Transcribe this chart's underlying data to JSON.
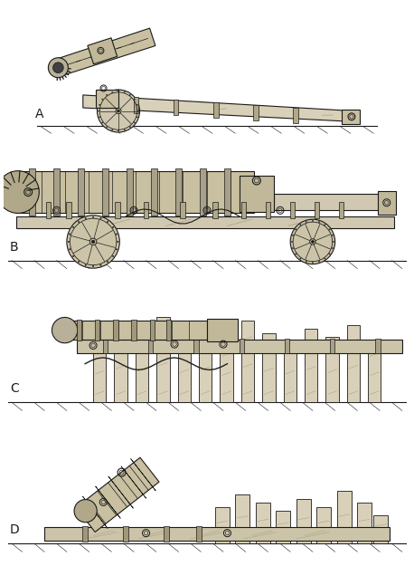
{
  "background_color": "#ffffff",
  "line_color": "#1a1a1a",
  "fill_light": "#e8e0d0",
  "fill_medium": "#d0c8b0",
  "fill_dark": "#b0a890",
  "fill_wheel": "#c8c0a8",
  "label_A": "A",
  "label_B": "B",
  "label_C": "C",
  "label_D": "D",
  "label_fontsize": 10,
  "fig_width": 4.58,
  "fig_height": 6.25,
  "dpi": 100
}
